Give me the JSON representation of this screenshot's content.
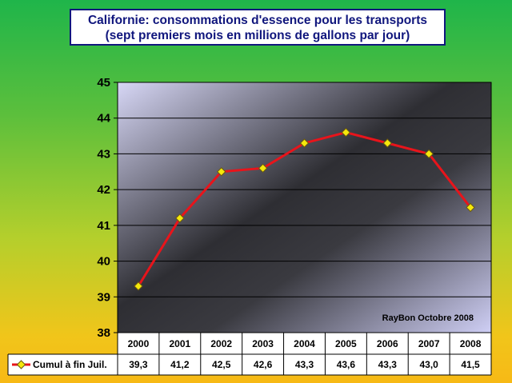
{
  "chart_data": {
    "type": "line",
    "title_line1": "Californie: consommations d'essence pour les transports",
    "title_line2": "(sept premiers mois en millions de gallons par jour)",
    "categories": [
      "2000",
      "2001",
      "2002",
      "2003",
      "2004",
      "2005",
      "2006",
      "2007",
      "2008"
    ],
    "series": [
      {
        "name": "Cumul à fin Juil.",
        "values": [
          39.3,
          41.2,
          42.5,
          42.6,
          43.3,
          43.6,
          43.3,
          43.0,
          41.5
        ],
        "value_labels": [
          "39,3",
          "41,2",
          "42,5",
          "42,6",
          "43,3",
          "43,6",
          "43,3",
          "43,0",
          "41,5"
        ],
        "color": "#e8141b",
        "marker_color": "#f5e80c"
      }
    ],
    "ylim": [
      38,
      45
    ],
    "yticks": [
      38,
      39,
      40,
      41,
      42,
      43,
      44,
      45
    ],
    "grid": true,
    "data_table": true,
    "annotation": "RayBon Octobre 2008"
  }
}
